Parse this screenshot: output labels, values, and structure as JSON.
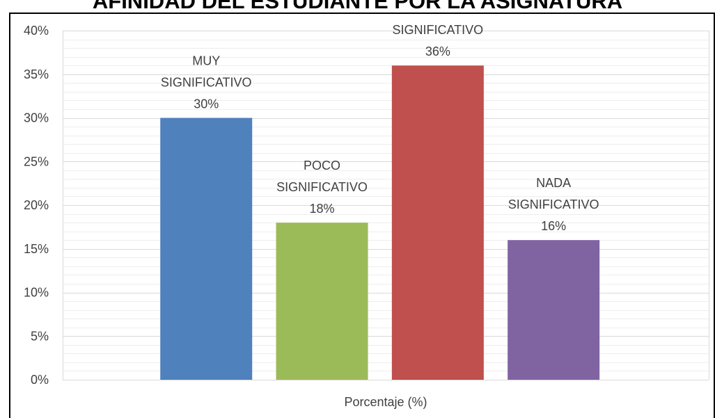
{
  "chart_data": {
    "type": "bar",
    "title": "AFINIDAD DEL ESTUDIANTE POR LA ASIGNATURA",
    "xlabel": "Porcentaje (%)",
    "ylabel": "",
    "ylim": [
      0,
      40
    ],
    "y_ticks": [
      "0%",
      "5%",
      "10%",
      "15%",
      "20%",
      "25%",
      "30%",
      "35%",
      "40%"
    ],
    "grid": true,
    "categories": [
      "MUY SIGNIFICATIVO",
      "POCO SIGNIFICATIVO",
      "SIGNIFICATIVO",
      "NADA SIGNIFICATIVO"
    ],
    "values": [
      30,
      18,
      36,
      16
    ],
    "value_labels": [
      "30%",
      "18%",
      "36%",
      "16%"
    ],
    "label_lines": [
      [
        "MUY",
        "SIGNIFICATIVO"
      ],
      [
        "POCO",
        "SIGNIFICATIVO"
      ],
      [
        "SIGNIFICATIVO"
      ],
      [
        "NADA",
        "SIGNIFICATIVO"
      ]
    ],
    "colors": [
      "#4F81BD",
      "#9BBB59",
      "#C0504D",
      "#8064A2"
    ]
  }
}
